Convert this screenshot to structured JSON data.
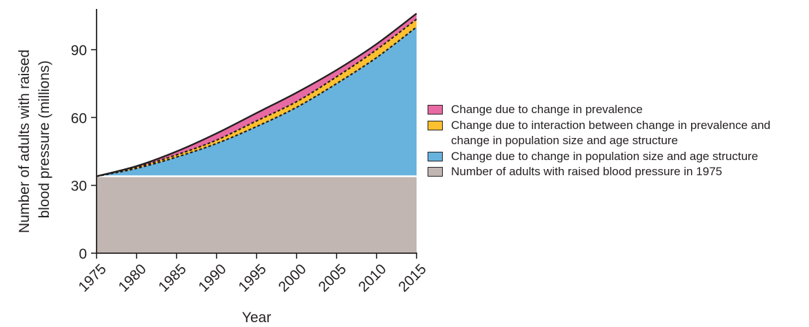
{
  "chart_data": {
    "type": "area",
    "xlabel": "Year",
    "ylabel": "Number of adults with raised blood pressure (millions)",
    "ylabel_lines": [
      "Number of adults with raised",
      "blood pressure (millions)"
    ],
    "x_ticks": [
      "1975",
      "1980",
      "1985",
      "1990",
      "1995",
      "2000",
      "2005",
      "2010",
      "2015"
    ],
    "y_ticks": [
      "0",
      "30",
      "60",
      "90"
    ],
    "xlim": [
      1975,
      2015
    ],
    "ylim": [
      0,
      108
    ],
    "baseline_1975": 34,
    "x": [
      1975,
      1980,
      1985,
      1990,
      1995,
      2000,
      2005,
      2010,
      2015
    ],
    "cumulative_tops": {
      "population": [
        34,
        37.5,
        42.5,
        48.5,
        56,
        64.5,
        75,
        86.5,
        100
      ],
      "interaction": [
        34,
        38,
        43.5,
        50,
        58.5,
        67,
        78,
        90,
        103.5
      ],
      "total": [
        34,
        38.5,
        45,
        53,
        62,
        71,
        81,
        92.5,
        106
      ]
    },
    "series": [
      {
        "name": "Change due to change in prevalence",
        "color": "#e86aa2",
        "values": [
          0,
          0.5,
          1.5,
          3,
          3.5,
          4,
          3,
          2.5,
          2.5
        ]
      },
      {
        "name": "Change due to interaction between change in prevalence and change in population size and age structure",
        "color": "#fdc02f",
        "values": [
          0,
          0.5,
          1,
          1.5,
          2.5,
          2.5,
          3,
          3.5,
          3.5
        ]
      },
      {
        "name": "Change due to change in population size and age structure",
        "color": "#68b3dd",
        "values": [
          0,
          3.5,
          8.5,
          14.5,
          22,
          30.5,
          41,
          52.5,
          66
        ]
      },
      {
        "name": "Number of adults with raised blood pressure in 1975",
        "color": "#c2b6b2",
        "values": [
          34,
          34,
          34,
          34,
          34,
          34,
          34,
          34,
          34
        ]
      }
    ],
    "legend": [
      {
        "label": "Change due to change in prevalence",
        "color": "#e86aa2"
      },
      {
        "label": "Change due to interaction between change in prevalence and change in population size and age structure",
        "color": "#fdc02f"
      },
      {
        "label": "Change due to change in population size and age structure",
        "color": "#68b3dd"
      },
      {
        "label": "Number of adults with raised blood pressure in 1975",
        "color": "#c2b6b2"
      }
    ],
    "legend_placement": "right",
    "grid": false
  }
}
